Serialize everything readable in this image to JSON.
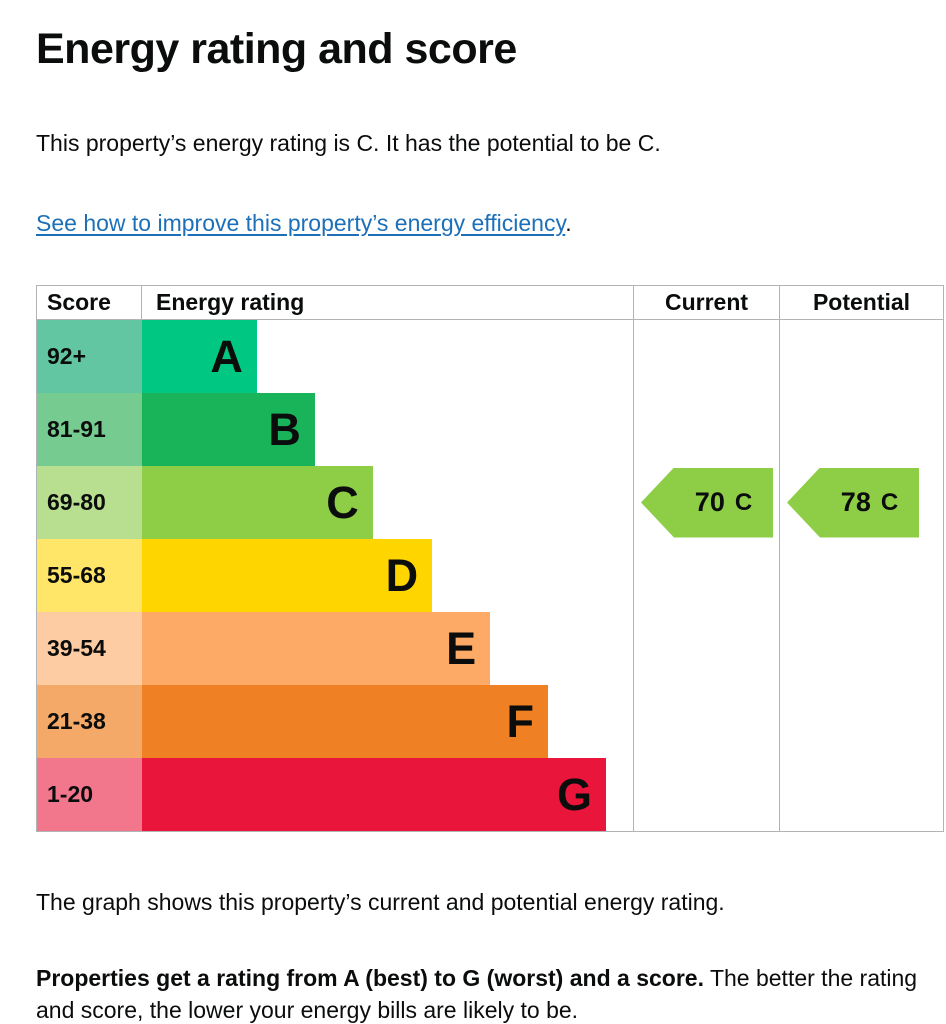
{
  "page": {
    "heading": "Energy rating and score",
    "intro": "This property’s energy rating is C. It has the potential to be C.",
    "improve_link": "See how to improve this property’s energy efficiency",
    "improve_link_suffix": ".",
    "graph_caption": "The graph shows this property’s current and potential energy rating.",
    "explainer_bold": "Properties get a rating from A (best) to G (worst) and a score.",
    "explainer_rest": "The better the rating and score, the lower your energy bills are likely to be."
  },
  "chart": {
    "headers": {
      "score": "Score",
      "rating": "Energy rating",
      "current": "Current",
      "potential": "Potential"
    },
    "bands": [
      {
        "score": "92+",
        "letter": "A",
        "color": "#00c781",
        "tint": "#62c6a2",
        "width": "23.4%"
      },
      {
        "score": "81-91",
        "letter": "B",
        "color": "#19b459",
        "tint": "#75cb90",
        "width": "35.2%"
      },
      {
        "score": "69-80",
        "letter": "C",
        "color": "#8dce46",
        "tint": "#b7df8f",
        "width": "47%"
      },
      {
        "score": "55-68",
        "letter": "D",
        "color": "#ffd500",
        "tint": "#ffe669",
        "width": "59.1%"
      },
      {
        "score": "39-54",
        "letter": "E",
        "color": "#fcaa65",
        "tint": "#fdcca3",
        "width": "70.9%"
      },
      {
        "score": "21-38",
        "letter": "F",
        "color": "#ef8023",
        "tint": "#f4a968",
        "width": "82.7%"
      },
      {
        "score": "1-20",
        "letter": "G",
        "color": "#e9153b",
        "tint": "#f2778d",
        "width": "94.5%"
      }
    ],
    "current": {
      "value": "70",
      "letter": "C",
      "color": "#8dce46"
    },
    "potential": {
      "value": "78",
      "letter": "C",
      "color": "#8dce46"
    }
  },
  "chart_data": {
    "type": "bar",
    "title": "Energy rating and score",
    "columns": [
      "Score",
      "Energy rating",
      "Current",
      "Potential"
    ],
    "categories": [
      "A",
      "B",
      "C",
      "D",
      "E",
      "F",
      "G"
    ],
    "score_ranges": [
      "92+",
      "81-91",
      "69-80",
      "55-68",
      "39-54",
      "21-38",
      "1-20"
    ],
    "bar_lengths_pct": [
      23.4,
      35.2,
      47,
      59.1,
      70.9,
      82.7,
      94.5
    ],
    "band_colors": [
      "#00c781",
      "#19b459",
      "#8dce46",
      "#ffd500",
      "#fcaa65",
      "#ef8023",
      "#e9153b"
    ],
    "current": {
      "score": 70,
      "rating": "C",
      "row": "69-80"
    },
    "potential": {
      "score": 78,
      "rating": "C",
      "row": "69-80"
    },
    "legend_position": "none",
    "grid": false
  },
  "colors": {
    "text": "#0b0c0c",
    "link": "#1d70b8",
    "border": "#b1b4b6",
    "background": "#ffffff"
  }
}
